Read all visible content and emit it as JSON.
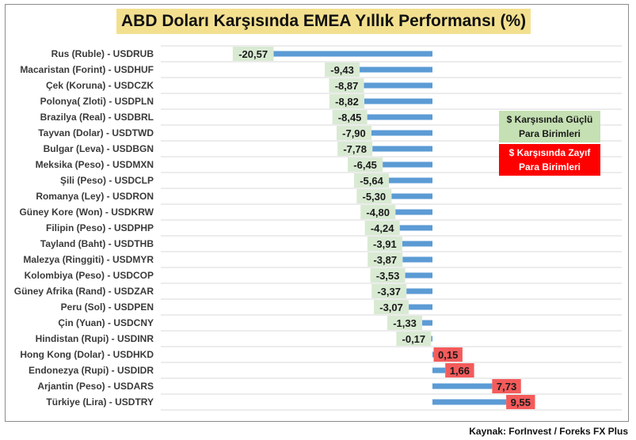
{
  "colors": {
    "bar": "#5b9bd5",
    "negative_label_bg": "#d9ead3",
    "positive_label_bg": "#f45b5b",
    "title_bg": "#f3e08f",
    "grid": "#d9d9d9"
  },
  "legend": {
    "strong": "$ Karşısında Güçlü Para Birimleri",
    "weak": "$ Karşısında Zayıf Para Birimleri"
  },
  "source": "Kaynak: ForInvest / Foreks FX Plus",
  "chart_data": {
    "type": "bar",
    "orientation": "horizontal",
    "title": "ABD Doları Karşısında EMEA Yıllık Performansı (%)",
    "xlabel": "",
    "ylabel": "",
    "grid": true,
    "legend_position": "right",
    "categories": [
      "Rus (Ruble) - USDRUB",
      "Macaristan (Forint) - USDHUF",
      "Çek (Koruna) - USDCZK",
      "Polonya( Zloti) - USDPLN",
      "Brazilya (Real) - USDBRL",
      "Tayvan (Dolar) - USDTWD",
      "Bulgar (Leva) - USDBGN",
      "Meksika (Peso) - USDMXN",
      "Şili (Peso) - USDCLP",
      "Romanya (Ley) - USDRON",
      "Güney Kore (Won) - USDKRW",
      "Filipin (Peso) - USDPHP",
      "Tayland (Baht) - USDTHB",
      "Malezya (Ringgiti) - USDMYR",
      "Kolombiya (Peso) - USDCOP",
      "Güney Afrika (Rand) - USDZAR",
      "Peru (Sol) - USDPEN",
      "Çin (Yuan) - USDCNY",
      "Hindistan (Rupi) - USDINR",
      "Hong Kong (Dolar) - USDHKD",
      "Endonezya (Rupi) - USDIDR",
      "Arjantin (Peso) - USDARS",
      "Türkiye (Lira) - USDTRY"
    ],
    "values": [
      -20.57,
      -9.43,
      -8.87,
      -8.82,
      -8.45,
      -7.9,
      -7.78,
      -6.45,
      -5.64,
      -5.3,
      -4.8,
      -4.24,
      -3.91,
      -3.87,
      -3.53,
      -3.37,
      -3.07,
      -1.33,
      -0.17,
      0.15,
      1.66,
      7.73,
      9.55
    ],
    "value_labels": [
      "-20,57",
      "-9,43",
      "-8,87",
      "-8,82",
      "-8,45",
      "-7,90",
      "-7,78",
      "-6,45",
      "-5,64",
      "-5,30",
      "-4,80",
      "-4,24",
      "-3,91",
      "-3,87",
      "-3,53",
      "-3,37",
      "-3,07",
      "-1,33",
      "-0,17",
      "0,15",
      "1,66",
      "7,73",
      "9,55"
    ],
    "xlim": [
      -25,
      25
    ]
  }
}
